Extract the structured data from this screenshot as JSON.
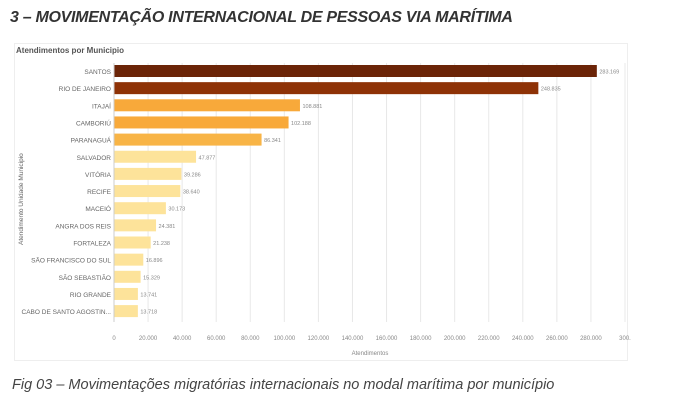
{
  "page_title": "3 – MOVIMENTAÇÃO INTERNACIONAL DE PESSOAS VIA MARÍTIMA",
  "caption": "Fig 03 – Movimentações migratórias internacionais no modal marítima por município",
  "chart_data": {
    "type": "bar",
    "orientation": "horizontal",
    "title": "Atendimentos por Municipio",
    "xlabel": "Atendimentos",
    "ylabel": "Atendimento Unidade Municipio",
    "xlim": [
      0,
      300000
    ],
    "grid": true,
    "x_ticks": [
      "0",
      "20.000",
      "40.000",
      "60.000",
      "80.000",
      "100.000",
      "120.000",
      "140.000",
      "160.000",
      "180.000",
      "200.000",
      "220.000",
      "240.000",
      "260.000",
      "280.000",
      "300."
    ],
    "categories": [
      "SANTOS",
      "RIO DE JANEIRO",
      "ITAJAÍ",
      "CAMBORIÚ",
      "PARANAGUÁ",
      "SALVADOR",
      "VITÓRIA",
      "RECIFE",
      "MACEIÓ",
      "ANGRA DOS REIS",
      "FORTALEZA",
      "SÃO FRANCISCO DO SUL",
      "SÃO SEBASTIÃO",
      "RIO GRANDE",
      "CABO DE SANTO AGOSTIN..."
    ],
    "values": [
      283169,
      248835,
      108881,
      102188,
      86341,
      47877,
      39286,
      38640,
      30173,
      24381,
      21238,
      16896,
      15329,
      13741,
      13718
    ],
    "labels": [
      "283.169",
      "248.835",
      "108.881",
      "102.188",
      "86.341",
      "47.877",
      "39.286",
      "38.640",
      "30.173",
      "24.381",
      "21.238",
      "16.896",
      "15.329",
      "13.741",
      "13.718"
    ],
    "colors": [
      "#6b2407",
      "#8e3206",
      "#f8a93a",
      "#f8a93a",
      "#f8b446",
      "#fde39a",
      "#fde39a",
      "#fde39a",
      "#fde39a",
      "#fde39a",
      "#fde39a",
      "#fde39a",
      "#fde39a",
      "#fde39a",
      "#fde39a"
    ]
  }
}
